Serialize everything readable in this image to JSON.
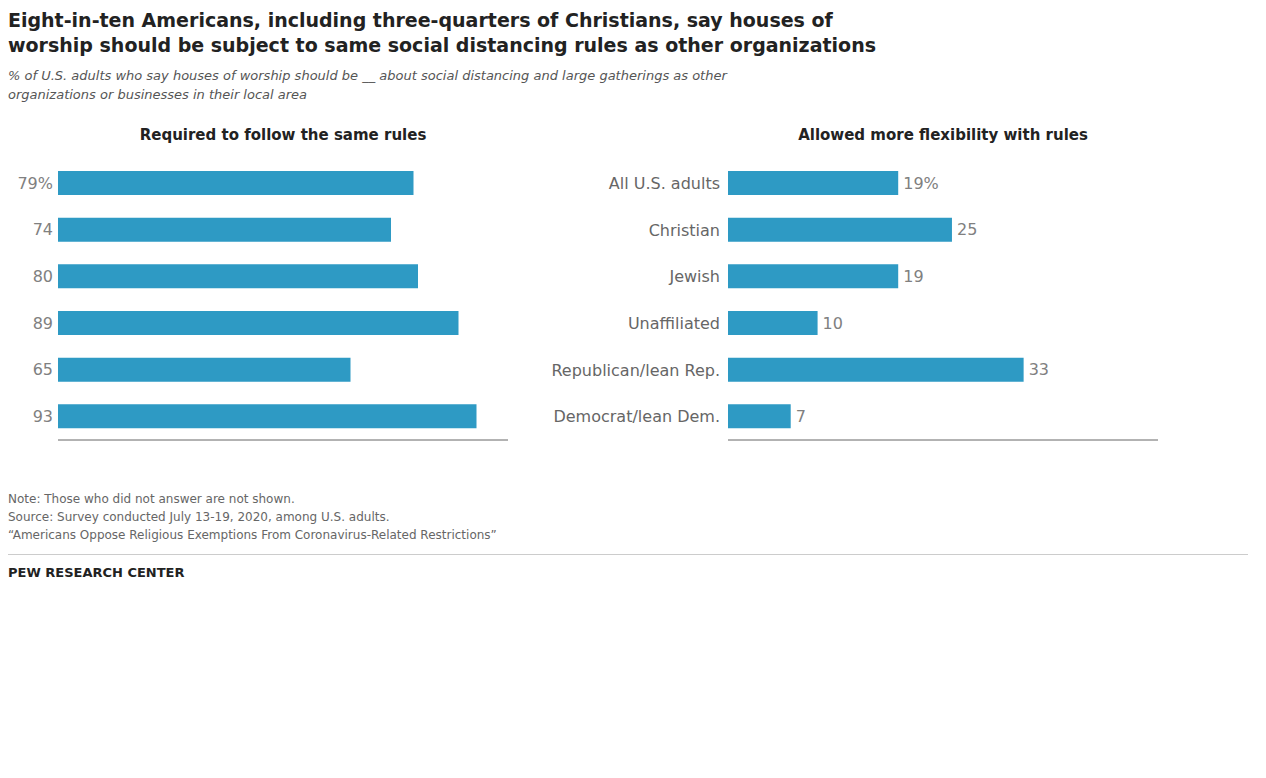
{
  "title": "Eight-in-ten Americans, including three-quarters of Christians, say houses of\nworship should be subject to same social distancing rules as other organizations",
  "subtitle": "% of U.S. adults who say houses of worship should be __ about social distancing and large gatherings as other\norganizations or businesses in their local area",
  "note": "Note: Those who did not answer are not shown.\nSource: Survey conducted July 13-19, 2020, among U.S. adults.\n“Americans Oppose Religious Exemptions From Coronavirus-Related Restrictions”",
  "footer": "PEW RESEARCH CENTER",
  "chart_data": [
    {
      "type": "bar",
      "orientation": "horizontal",
      "title": "Required to follow the same rules",
      "categories": [
        "All U.S. adults",
        "Christian",
        "Jewish",
        "Unaffiliated",
        "Republican/lean Rep.",
        "Democrat/lean Dem."
      ],
      "values": [
        79,
        74,
        80,
        89,
        65,
        93
      ],
      "value_labels": [
        "79%",
        "74",
        "80",
        "89",
        "65",
        "93"
      ],
      "data_labels": true,
      "color": "#2E9AC4",
      "xlim": [
        0,
        100
      ],
      "tick_labels": false
    },
    {
      "type": "bar",
      "orientation": "horizontal",
      "title": "Allowed more flexibility with rules",
      "categories": [
        "All U.S. adults",
        "Christian",
        "Jewish",
        "Unaffiliated",
        "Republican/lean Rep.",
        "Democrat/lean Dem."
      ],
      "values": [
        19,
        25,
        19,
        10,
        33,
        7
      ],
      "value_labels": [
        "19%",
        "25",
        "19",
        "10",
        "33",
        "7"
      ],
      "data_labels": true,
      "color": "#2E9AC4",
      "xlim": [
        0,
        48
      ],
      "tick_labels": "y"
    }
  ]
}
